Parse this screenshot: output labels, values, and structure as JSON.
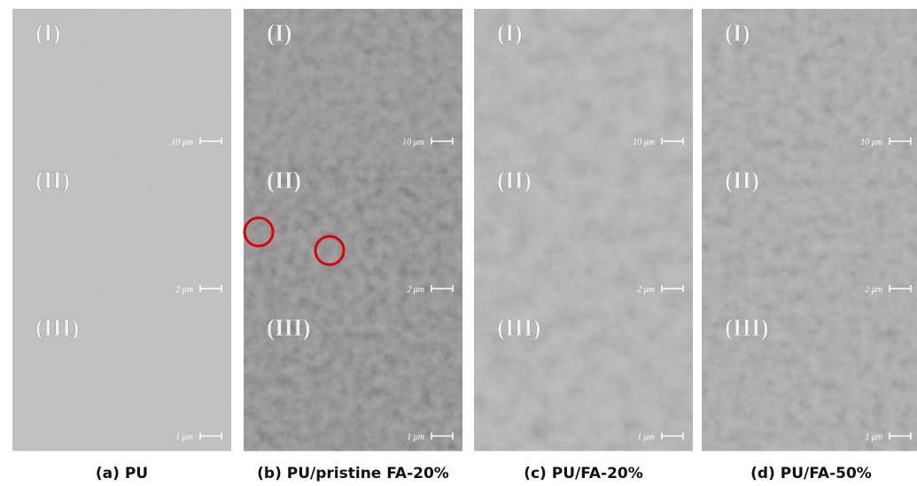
{
  "columns": [
    {
      "caption": "(a) PU",
      "panels": [
        {
          "label": "(I)",
          "scale": "10 μm"
        },
        {
          "label": "(II)",
          "scale": "2 μm"
        },
        {
          "label": "(III)",
          "scale": "1 μm"
        }
      ]
    },
    {
      "caption": "(b) PU/pristine FA-20%",
      "panels": [
        {
          "label": "(I)",
          "scale": "10 μm"
        },
        {
          "label": "(II)",
          "scale": "2 μm"
        },
        {
          "label": "(III)",
          "scale": "1 μm"
        }
      ]
    },
    {
      "caption": "(c) PU/FA-20%",
      "panels": [
        {
          "label": "(I)",
          "scale": "10 μm"
        },
        {
          "label": "(II)",
          "scale": "2 μm"
        },
        {
          "label": "(III)",
          "scale": "1 μm"
        }
      ]
    },
    {
      "caption": "(d) PU/FA-50%",
      "panels": [
        {
          "label": "(I)",
          "scale": "10 μm"
        },
        {
          "label": "(II)",
          "scale": "2 μm"
        },
        {
          "label": "(III)",
          "scale": "1 μm"
        }
      ]
    }
  ]
}
